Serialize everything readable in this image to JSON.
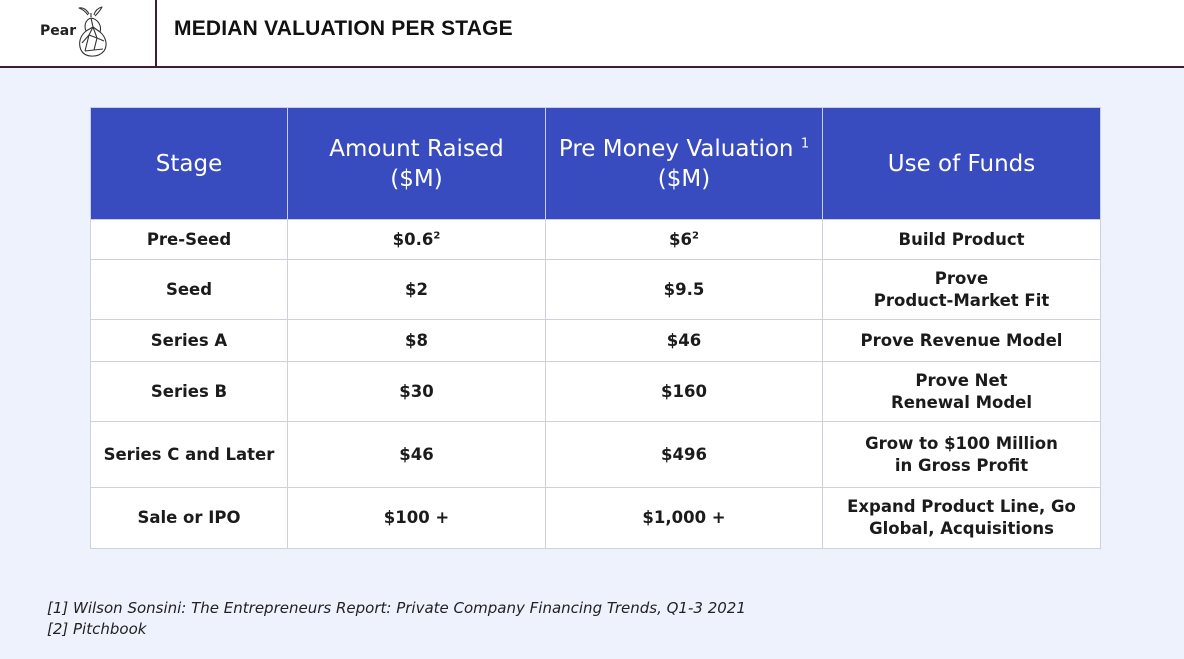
{
  "logo": {
    "text": "Pear"
  },
  "title": "MEDIAN VALUATION PER STAGE",
  "table": {
    "headers": {
      "stage": "Stage",
      "amount_line1": "Amount Raised",
      "amount_line2": "($M)",
      "valuation_line1": "Pre Money Valuation",
      "valuation_sup": "1",
      "valuation_line2": "($M)",
      "use": "Use of Funds"
    },
    "rows": [
      {
        "stage": "Pre-Seed",
        "amount": "$0.6",
        "amount_sup": "2",
        "valuation": "$6",
        "valuation_sup": "2",
        "use_line1": "Build Product",
        "use_line2": ""
      },
      {
        "stage": "Seed",
        "amount": "$2",
        "valuation": "$9.5",
        "use_line1": "Prove",
        "use_line2": "Product-Market Fit"
      },
      {
        "stage": "Series A",
        "amount": "$8",
        "valuation": "$46",
        "use_line1": "Prove Revenue Model",
        "use_line2": ""
      },
      {
        "stage": "Series B",
        "amount": "$30",
        "valuation": "$160",
        "use_line1": "Prove Net",
        "use_line2": "Renewal Model"
      },
      {
        "stage": "Series C and Later",
        "amount": "$46",
        "valuation": "$496",
        "use_line1": "Grow to $100 Million",
        "use_line2": "in Gross Profit"
      },
      {
        "stage": "Sale or IPO",
        "amount": "$100 +",
        "valuation": "$1,000 +",
        "use_line1": "Expand Product Line, Go",
        "use_line2": "Global, Acquisitions"
      }
    ]
  },
  "footnotes": [
    "[1] Wilson Sonsini: The Entrepreneurs Report: Private Company Financing Trends, Q1-3 2021",
    "[2] Pitchbook"
  ]
}
